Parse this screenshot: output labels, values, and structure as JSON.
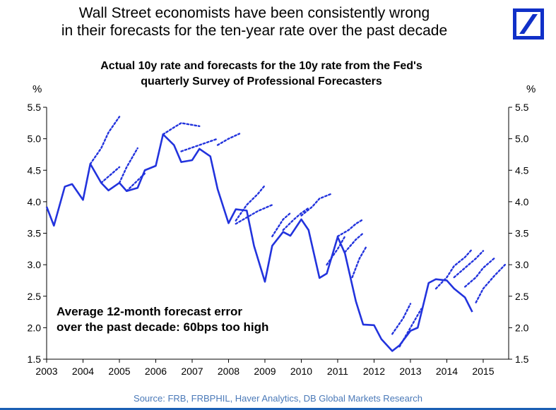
{
  "headline": {
    "line1": "Wall Street economists have been consistently wrong",
    "line2": "in their forecasts for the ten-year rate over the past decade"
  },
  "brand": {
    "logo_icon": "deutsche-bank-slash-logo",
    "color": "#1030c8"
  },
  "units": {
    "left": "%",
    "right": "%"
  },
  "annotation": {
    "line1": "Average 12-month forecast error",
    "line2": "over the past decade: 60bps too high"
  },
  "source": "Source: FRB, FRBPHIL, Haver Analytics, DB Global Markets Research",
  "chart_data": {
    "type": "line",
    "title": "Actual 10y rate and forecasts for the 10y rate from the Fed's",
    "subtitle": "quarterly Survey of Professional Forecasters",
    "xlabel": "",
    "ylabel": "%",
    "xlim": [
      2003,
      2015.7
    ],
    "ylim": [
      1.5,
      5.5
    ],
    "y_ticks": [
      1.5,
      2.0,
      2.5,
      3.0,
      3.5,
      4.0,
      4.5,
      5.0,
      5.5
    ],
    "y_tick_labels": [
      "1.5",
      "2.0",
      "2.5",
      "3.0",
      "3.5",
      "4.0",
      "4.5",
      "5.0",
      "5.5"
    ],
    "x_ticks": [
      2003,
      2004,
      2005,
      2006,
      2007,
      2008,
      2009,
      2010,
      2011,
      2012,
      2013,
      2014,
      2015
    ],
    "x_tick_labels": [
      "2003",
      "2004",
      "2005",
      "2006",
      "2007",
      "2008",
      "2009",
      "2010",
      "2011",
      "2012",
      "2013",
      "2014",
      "2015"
    ],
    "grid": false,
    "dual_y_axis": true,
    "line_color": "#2233dd",
    "series": [
      {
        "style": "solid",
        "x": [
          2003.0,
          2003.2,
          2003.5,
          2003.7,
          2004.0,
          2004.2,
          2004.5,
          2004.7,
          2005.0,
          2005.2,
          2005.5,
          2005.7,
          2006.0,
          2006.2,
          2006.5,
          2006.7,
          2007.0,
          2007.2,
          2007.5,
          2007.7,
          2008.0,
          2008.2,
          2008.5,
          2008.7,
          2009.0,
          2009.2,
          2009.5,
          2009.7,
          2010.0,
          2010.2,
          2010.5,
          2010.7,
          2011.0,
          2011.2,
          2011.5,
          2011.7,
          2012.0,
          2012.2,
          2012.5,
          2012.7,
          2013.0,
          2013.2,
          2013.5,
          2013.7,
          2014.0,
          2014.2,
          2014.5,
          2014.7
        ],
        "y": [
          3.92,
          3.62,
          4.24,
          4.28,
          4.03,
          4.6,
          4.3,
          4.18,
          4.3,
          4.17,
          4.22,
          4.5,
          4.57,
          5.07,
          4.9,
          4.63,
          4.66,
          4.84,
          4.72,
          4.2,
          3.66,
          3.88,
          3.86,
          3.3,
          2.73,
          3.3,
          3.52,
          3.46,
          3.72,
          3.55,
          2.79,
          2.86,
          3.44,
          3.18,
          2.42,
          2.05,
          2.04,
          1.82,
          1.63,
          1.72,
          1.95,
          2.0,
          2.71,
          2.77,
          2.75,
          2.62,
          2.48,
          2.25
        ]
      },
      {
        "style": "dotted",
        "segments": [
          {
            "x": [
              2004.2,
              2004.5,
              2004.7,
              2005.0
            ],
            "y": [
              4.6,
              4.85,
              5.1,
              5.35
            ]
          },
          {
            "x": [
              2004.5,
              2005.0
            ],
            "y": [
              4.3,
              4.55
            ]
          },
          {
            "x": [
              2005.0,
              2005.2,
              2005.5
            ],
            "y": [
              4.3,
              4.55,
              4.85
            ]
          },
          {
            "x": [
              2005.2,
              2005.7
            ],
            "y": [
              4.17,
              4.45
            ]
          },
          {
            "x": [
              2006.2,
              2006.5,
              2006.7,
              2007.0,
              2007.2
            ],
            "y": [
              5.07,
              5.18,
              5.25,
              5.22,
              5.2
            ]
          },
          {
            "x": [
              2006.7,
              2007.0,
              2007.5,
              2007.7
            ],
            "y": [
              4.8,
              4.86,
              4.96,
              5.0
            ]
          },
          {
            "x": [
              2007.7,
              2008.0,
              2008.3
            ],
            "y": [
              4.9,
              5.0,
              5.08
            ]
          },
          {
            "x": [
              2008.2,
              2008.5,
              2008.8,
              2009.0
            ],
            "y": [
              3.7,
              3.95,
              4.12,
              4.26
            ]
          },
          {
            "x": [
              2008.2,
              2008.5,
              2008.8,
              2009.2
            ],
            "y": [
              3.65,
              3.75,
              3.85,
              3.95
            ]
          },
          {
            "x": [
              2009.2,
              2009.5,
              2009.7
            ],
            "y": [
              3.45,
              3.72,
              3.82
            ]
          },
          {
            "x": [
              2009.5,
              2009.8,
              2010.0,
              2010.2
            ],
            "y": [
              3.55,
              3.72,
              3.82,
              3.9
            ]
          },
          {
            "x": [
              2010.0,
              2010.3,
              2010.5,
              2010.8
            ],
            "y": [
              3.78,
              3.92,
              4.05,
              4.12
            ]
          },
          {
            "x": [
              2010.7,
              2011.0,
              2011.2
            ],
            "y": [
              3.0,
              3.25,
              3.45
            ]
          },
          {
            "x": [
              2011.0,
              2011.3,
              2011.5,
              2011.7
            ],
            "y": [
              3.45,
              3.55,
              3.65,
              3.72
            ]
          },
          {
            "x": [
              2011.2,
              2011.5,
              2011.7
            ],
            "y": [
              3.2,
              3.4,
              3.5
            ]
          },
          {
            "x": [
              2011.4,
              2011.6,
              2011.8
            ],
            "y": [
              2.8,
              3.1,
              3.3
            ]
          },
          {
            "x": [
              2012.5,
              2012.8,
              2013.0
            ],
            "y": [
              1.9,
              2.15,
              2.38
            ]
          },
          {
            "x": [
              2012.7,
              2013.0,
              2013.3
            ],
            "y": [
              1.7,
              2.0,
              2.3
            ]
          },
          {
            "x": [
              2013.7,
              2014.0,
              2014.2,
              2014.5,
              2014.7
            ],
            "y": [
              2.62,
              2.8,
              2.98,
              3.12,
              3.25
            ]
          },
          {
            "x": [
              2014.2,
              2014.5,
              2014.8,
              2015.0
            ],
            "y": [
              2.8,
              2.95,
              3.1,
              3.22
            ]
          },
          {
            "x": [
              2014.5,
              2014.8,
              2015.0,
              2015.3
            ],
            "y": [
              2.65,
              2.8,
              2.95,
              3.1
            ]
          },
          {
            "x": [
              2014.8,
              2015.0,
              2015.3,
              2015.6
            ],
            "y": [
              2.4,
              2.62,
              2.82,
              3.0
            ]
          }
        ]
      }
    ]
  }
}
